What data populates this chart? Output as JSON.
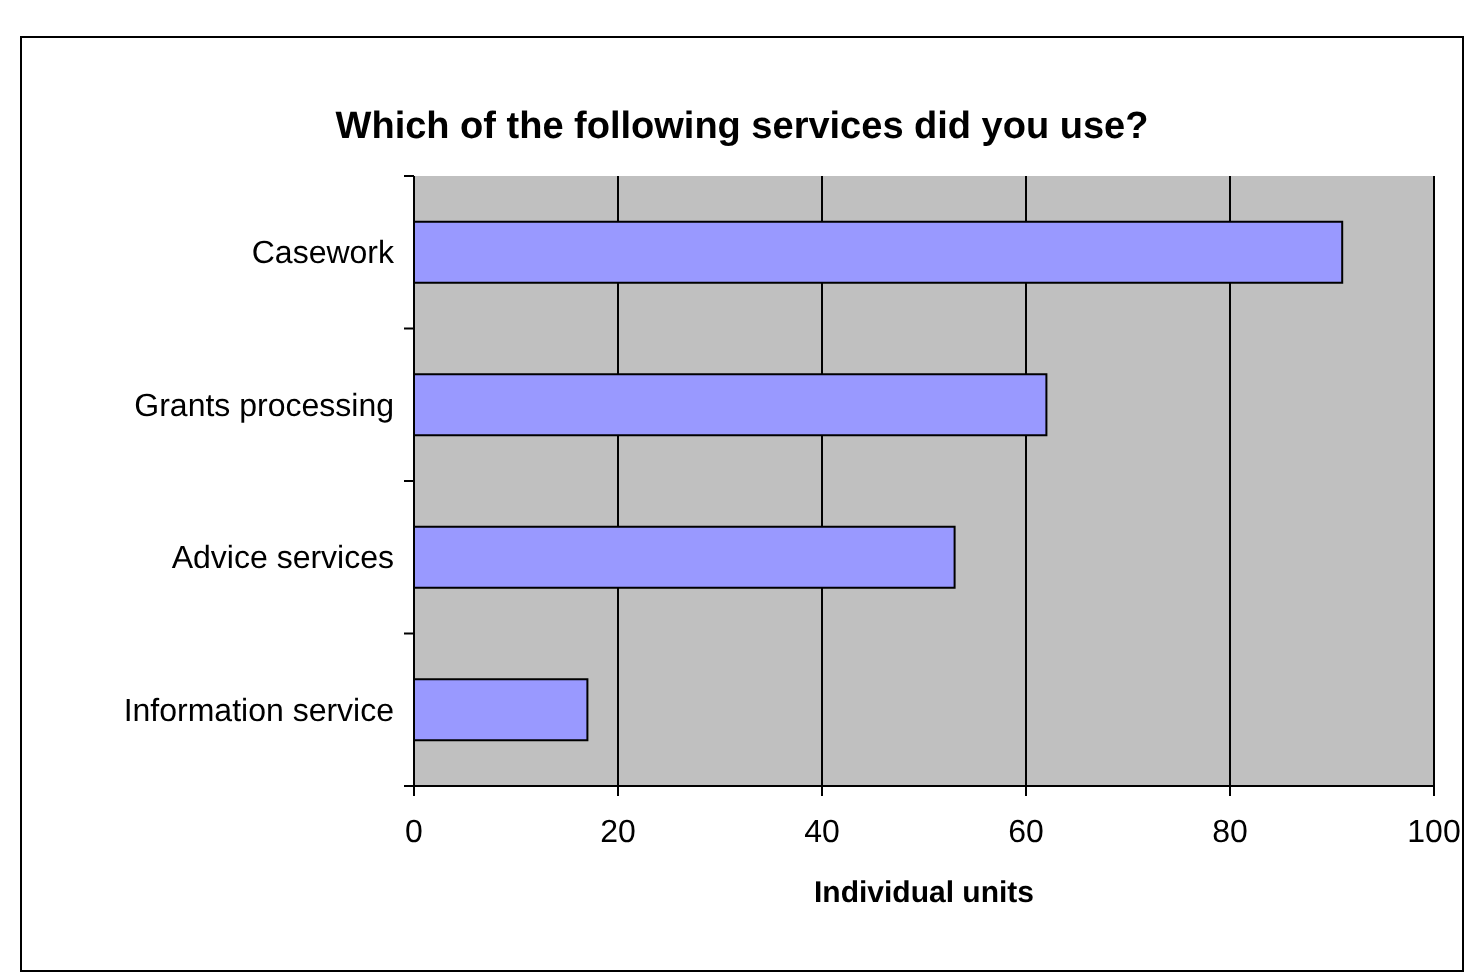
{
  "chart_data": {
    "type": "bar",
    "orientation": "horizontal",
    "title": "Which of the following services did you use?",
    "xlabel": "Individual units",
    "categories": [
      "Casework",
      "Grants processing",
      "Advice services",
      "Information service"
    ],
    "values": [
      91,
      62,
      53,
      17
    ],
    "color": "#9999ff",
    "xlim": [
      0,
      100
    ],
    "xticks": [
      0,
      20,
      40,
      60,
      80,
      100
    ],
    "grid": "x"
  }
}
